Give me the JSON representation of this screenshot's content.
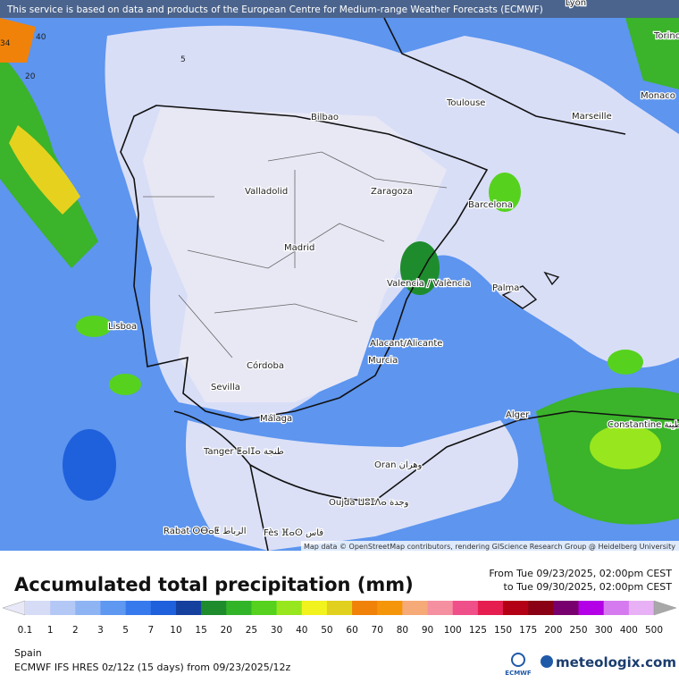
{
  "header": {
    "notice": "This service is based on data and products of the European Centre for Medium-range Weather Forecasts (ECMWF)"
  },
  "map": {
    "attribution": "Map data © OpenStreetMap contributors, rendering GIScience Research Group @ Heidelberg University",
    "cities": [
      "Bilbao",
      "Toulouse",
      "Marseille",
      "Monaco",
      "Torino",
      "Lyon",
      "Valladolid",
      "Zaragoza",
      "Barcelona",
      "Madrid",
      "Valencia / València",
      "Palma",
      "Lisboa",
      "Alacant/Alicante",
      "Murcia",
      "Córdoba",
      "Sevilla",
      "Málaga",
      "Alger",
      "Constantine قسنطينة",
      "Tanger ⵟⴰⵏⵊⴰ طنجة",
      "Oran وهران",
      "Oujda ⵡⵓⵊⴷⴰ وجدة",
      "Rabat ⵔⴱⴰⵟ الرباط",
      "Fès ⴼⴰⵙ فاس"
    ],
    "contour_labels": [
      "5",
      "20",
      "40",
      "34"
    ]
  },
  "footer": {
    "title": "Accumulated total precipitation (mm)",
    "period_from": "From Tue 09/23/2025, 02:00pm CEST",
    "period_to": "to Tue 09/30/2025, 02:00pm CEST",
    "region": "Spain",
    "model": "ECMWF IFS HRES 0z/12z (15 days) from 09/23/2025/12z",
    "ecmwf_logo": "ECMWF",
    "brand": "meteologix.com"
  },
  "legend": {
    "labels": [
      "0.1",
      "1",
      "2",
      "3",
      "5",
      "7",
      "10",
      "15",
      "20",
      "25",
      "30",
      "40",
      "50",
      "60",
      "70",
      "80",
      "90",
      "100",
      "125",
      "150",
      "175",
      "200",
      "250",
      "300",
      "400",
      "500"
    ],
    "colors": [
      "#e8e8f8",
      "#d6dcf6",
      "#b4c8f6",
      "#8eb4f4",
      "#5e98f0",
      "#367aee",
      "#1f60dc",
      "#16409e",
      "#1e8c2d",
      "#32b428",
      "#56d21e",
      "#98e61e",
      "#f2f21e",
      "#e2d01e",
      "#f0820a",
      "#f5960a",
      "#f5aa78",
      "#f590a0",
      "#f0508a",
      "#e61e50",
      "#b40014",
      "#8a0014",
      "#78006e",
      "#b400e6",
      "#d67af0",
      "#e8b0f5",
      "#f5e2f5",
      "#d8d8d8",
      "#a8a8a8"
    ]
  }
}
